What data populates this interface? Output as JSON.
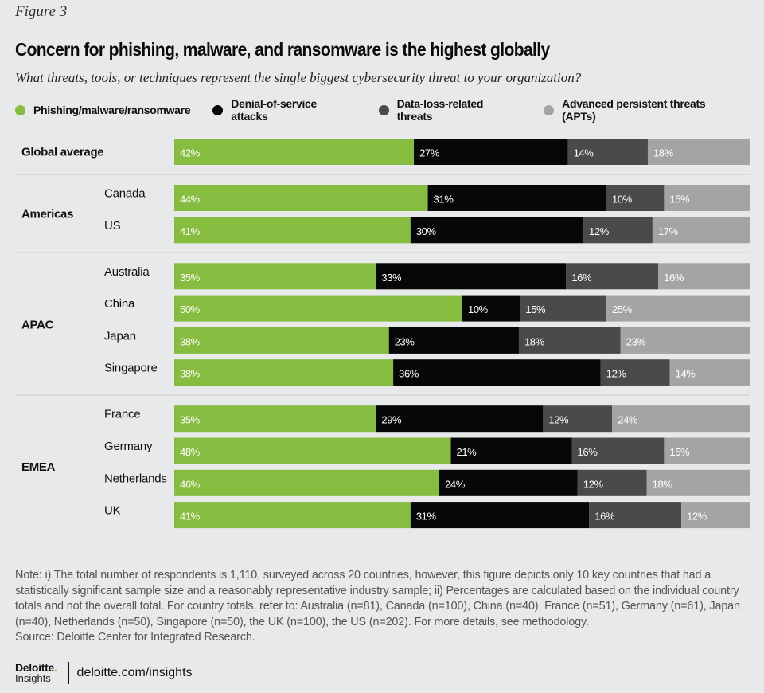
{
  "figure_label": "Figure 3",
  "title": "Concern for phishing, malware, and ransomware is the highest globally",
  "subtitle": "What threats, tools, or techniques represent the single biggest cybersecurity threat to your organization?",
  "colors": {
    "background": "#e8e9eb",
    "divider": "#d3d4d6"
  },
  "chart_data": {
    "type": "bar",
    "orientation": "horizontal",
    "stacked": true,
    "title": "Concern for phishing, malware, and ransomware is the highest globally",
    "xlabel": "",
    "ylabel": "",
    "legend_position": "top-left",
    "series": [
      {
        "name": "Phishing/malware/ransomware",
        "color": "#86bc3f",
        "label_color": "#ffffff"
      },
      {
        "name": "Denial-of-service attacks",
        "color": "#050708",
        "label_color": "#ffffff"
      },
      {
        "name": "Data-loss-related threats",
        "color": "#4a4a4a",
        "label_color": "#ffffff"
      },
      {
        "name": "Advanced persistent threats (APTs)",
        "color": "#a4a4a2",
        "label_color": "#ffffff"
      }
    ],
    "groups": [
      {
        "name": "Global average",
        "rows": [
          {
            "country": "",
            "values": [
              42,
              27,
              14,
              18
            ]
          }
        ]
      },
      {
        "name": "Americas",
        "rows": [
          {
            "country": "Canada",
            "values": [
              44,
              31,
              10,
              15
            ]
          },
          {
            "country": "US",
            "values": [
              41,
              30,
              12,
              17
            ]
          }
        ]
      },
      {
        "name": "APAC",
        "rows": [
          {
            "country": "Australia",
            "values": [
              35,
              33,
              16,
              16
            ]
          },
          {
            "country": "China",
            "values": [
              50,
              10,
              15,
              25
            ]
          },
          {
            "country": "Japan",
            "values": [
              38,
              23,
              18,
              23
            ]
          },
          {
            "country": "Singapore",
            "values": [
              38,
              36,
              12,
              14
            ]
          }
        ]
      },
      {
        "name": "EMEA",
        "rows": [
          {
            "country": "France",
            "values": [
              35,
              29,
              12,
              24
            ]
          },
          {
            "country": "Germany",
            "values": [
              48,
              21,
              16,
              15
            ]
          },
          {
            "country": "Netherlands",
            "values": [
              46,
              24,
              12,
              18
            ]
          },
          {
            "country": "UK",
            "values": [
              41,
              31,
              16,
              12
            ]
          }
        ]
      }
    ],
    "value_suffix": "%"
  },
  "note": "Note: i) The total number of respondents is 1,110, surveyed across 20 countries, however, this figure depicts only 10 key countries that had a statistically significant sample size and a reasonably representative industry sample; ii) Percentages are calculated based on the individual country totals and not the overall total. For country totals, refer to: Australia (n=81), Canada (n=100), China (n=40), France (n=51), Germany (n=61), Japan (n=40), Netherlands (n=50), Singapore (n=50), the UK (n=100), the US (n=202). For more details, see methodology.",
  "source": "Source: Deloitte Center for Integrated Research.",
  "footer": {
    "logo_top": "Deloitte",
    "logo_dot": ".",
    "logo_bottom": "Insights",
    "url": "deloitte.com/insights"
  }
}
